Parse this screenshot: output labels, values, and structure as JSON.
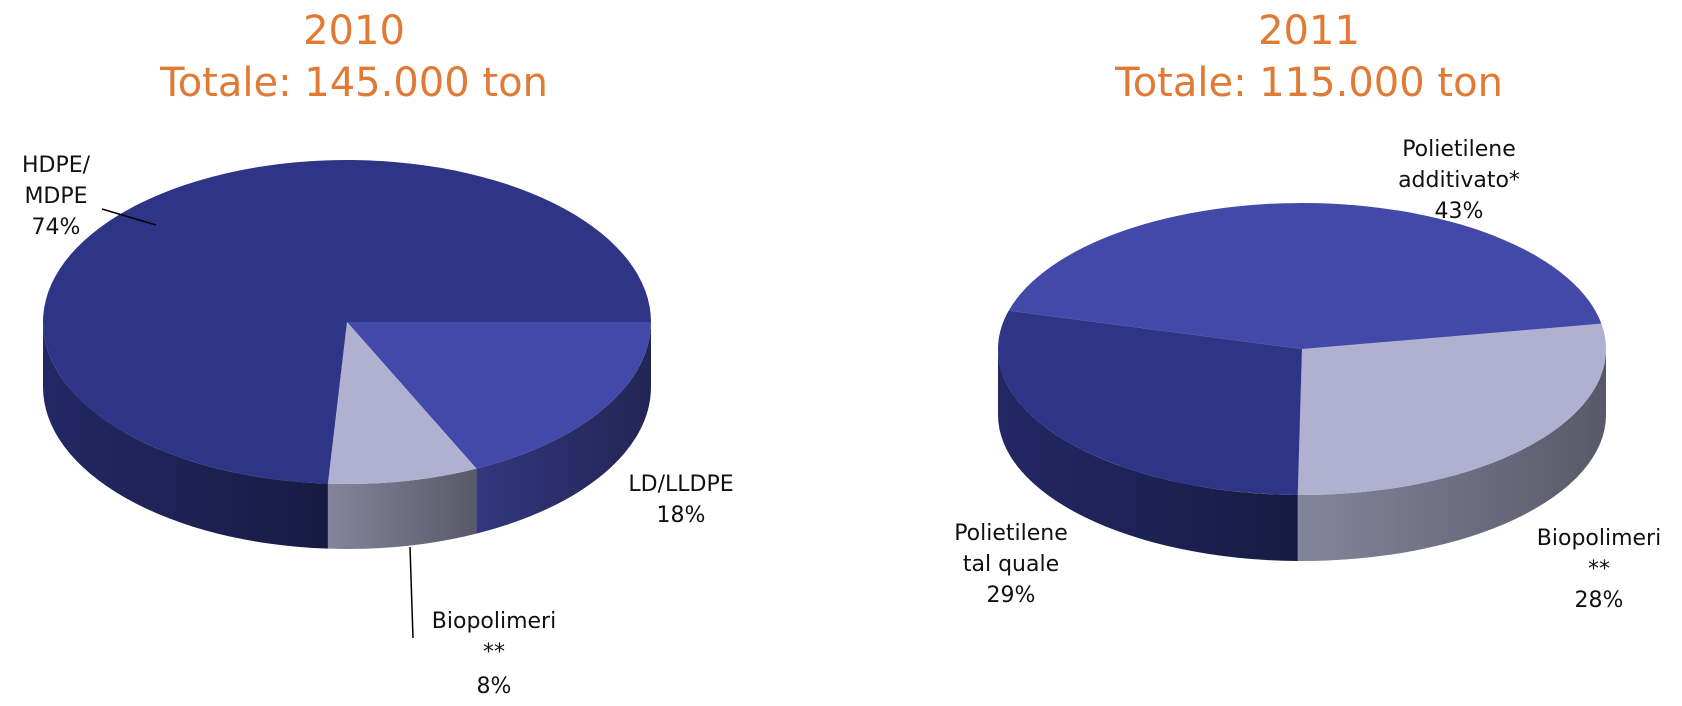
{
  "chart_data": [
    {
      "type": "pie3d",
      "title": "2010",
      "subtitle": "Totale: 145.000 ton",
      "categories": [
        "LD/LLDPE",
        "Biopolimeri\n**",
        "HDPE/\nMDPE"
      ],
      "values": [
        18,
        8,
        74
      ],
      "value_labels": [
        "18%",
        "8%",
        "74%"
      ],
      "colors": [
        "#4349a8",
        "#b0b1d0",
        "#2e3586"
      ]
    },
    {
      "type": "pie3d",
      "title": "2011",
      "subtitle": "Totale: 115.000 ton",
      "categories": [
        "Biopolimeri\n**",
        "Polietilene\ntal quale",
        "Polietilene\nadditivato*"
      ],
      "values": [
        28,
        29,
        43
      ],
      "value_labels": [
        "28%",
        "29%",
        "43%"
      ],
      "colors": [
        "#b0b1d0",
        "#2e3586",
        "#4349a8"
      ]
    }
  ]
}
